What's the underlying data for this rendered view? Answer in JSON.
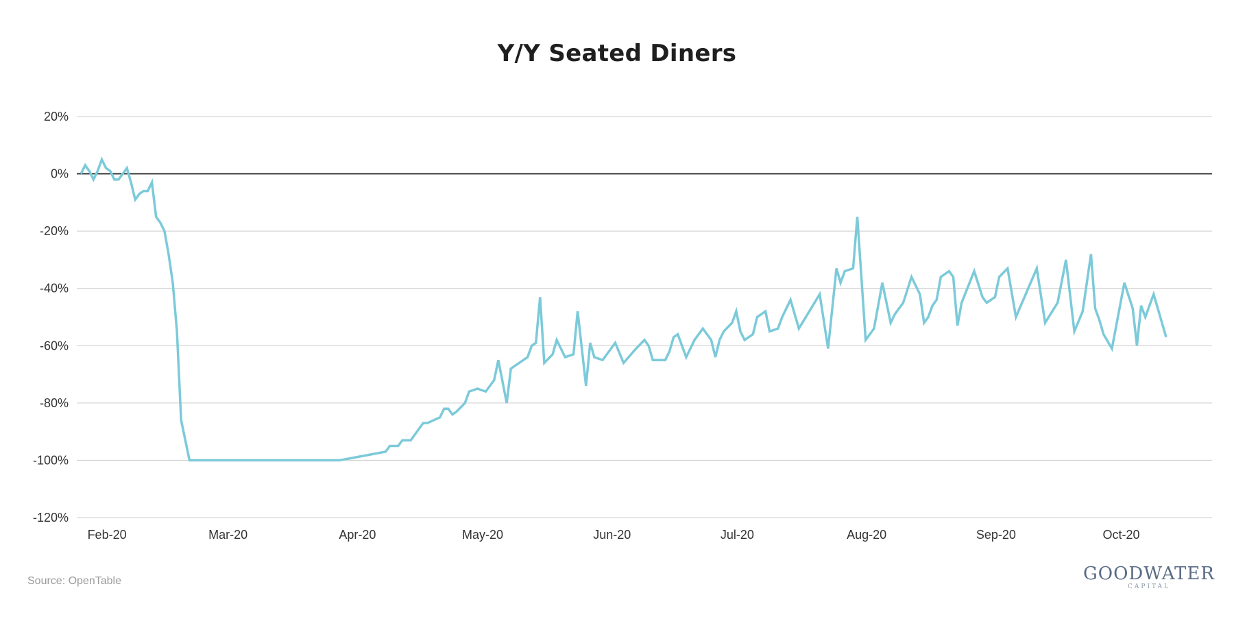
{
  "chart_data": {
    "type": "line",
    "title": "Y/Y Seated Diners",
    "source": "Source: OpenTable",
    "brand": {
      "name": "GOODWATER",
      "sub": "CAPITAL"
    },
    "xlabel": "",
    "ylabel": "",
    "ylim": [
      -120,
      20
    ],
    "yticks": [
      20,
      0,
      -20,
      -40,
      -60,
      -80,
      -100,
      -120
    ],
    "ytick_labels": [
      "20%",
      "0%",
      "-20%",
      "-40%",
      "-60%",
      "-80%",
      "-100%",
      "-120%"
    ],
    "xtick_labels": [
      "Feb-20",
      "Mar-20",
      "Apr-20",
      "May-20",
      "Jun-20",
      "Jul-20",
      "Aug-20",
      "Sep-20",
      "Oct-20"
    ],
    "xtick_dates": [
      "2020-02-01",
      "2020-03-01",
      "2020-04-01",
      "2020-05-01",
      "2020-06-01",
      "2020-07-01",
      "2020-08-01",
      "2020-09-01",
      "2020-10-01"
    ],
    "x_range": [
      "2020-01-31",
      "2020-10-29"
    ],
    "grid": true,
    "legend": "none",
    "colors": {
      "line": "#7ccad9",
      "grid": "#cccccc",
      "zero_line": "#111111"
    },
    "series": [
      {
        "values": [
          [
            "2020-02-01",
            0
          ],
          [
            "2020-02-02",
            3
          ],
          [
            "2020-02-03",
            1
          ],
          [
            "2020-02-04",
            -2
          ],
          [
            "2020-02-05",
            1
          ],
          [
            "2020-02-06",
            5
          ],
          [
            "2020-02-07",
            2
          ],
          [
            "2020-02-08",
            1
          ],
          [
            "2020-02-09",
            -2
          ],
          [
            "2020-02-10",
            -2
          ],
          [
            "2020-02-11",
            0
          ],
          [
            "2020-02-12",
            2
          ],
          [
            "2020-02-13",
            -3
          ],
          [
            "2020-02-14",
            -9
          ],
          [
            "2020-02-15",
            -7
          ],
          [
            "2020-02-16",
            -6
          ],
          [
            "2020-02-17",
            -6
          ],
          [
            "2020-02-18",
            -3
          ],
          [
            "2020-02-19",
            -15
          ],
          [
            "2020-02-20",
            -17
          ],
          [
            "2020-02-21",
            -20
          ],
          [
            "2020-02-22",
            -28
          ],
          [
            "2020-02-23",
            -38
          ],
          [
            "2020-02-24",
            -55
          ],
          [
            "2020-02-25",
            -86
          ],
          [
            "2020-02-27",
            -100
          ],
          [
            "2020-04-03",
            -100
          ],
          [
            "2020-04-14",
            -97
          ],
          [
            "2020-04-15",
            -95
          ],
          [
            "2020-04-17",
            -95
          ],
          [
            "2020-04-18",
            -93
          ],
          [
            "2020-04-20",
            -93
          ],
          [
            "2020-04-23",
            -87
          ],
          [
            "2020-04-24",
            -87
          ],
          [
            "2020-04-27",
            -85
          ],
          [
            "2020-04-28",
            -82
          ],
          [
            "2020-04-29",
            -82
          ],
          [
            "2020-04-30",
            -84
          ],
          [
            "2020-05-01",
            -83
          ],
          [
            "2020-05-03",
            -80
          ],
          [
            "2020-05-04",
            -76
          ],
          [
            "2020-05-06",
            -75
          ],
          [
            "2020-05-08",
            -76
          ],
          [
            "2020-05-10",
            -72
          ],
          [
            "2020-05-11",
            -65
          ],
          [
            "2020-05-13",
            -80
          ],
          [
            "2020-05-14",
            -68
          ],
          [
            "2020-05-18",
            -64
          ],
          [
            "2020-05-19",
            -60
          ],
          [
            "2020-05-20",
            -59
          ],
          [
            "2020-05-21",
            -43
          ],
          [
            "2020-05-22",
            -66
          ],
          [
            "2020-05-24",
            -63
          ],
          [
            "2020-05-25",
            -58
          ],
          [
            "2020-05-26",
            -61
          ],
          [
            "2020-05-27",
            -64
          ],
          [
            "2020-05-29",
            -63
          ],
          [
            "2020-05-30",
            -48
          ],
          [
            "2020-06-01",
            -74
          ],
          [
            "2020-06-02",
            -59
          ],
          [
            "2020-06-03",
            -64
          ],
          [
            "2020-06-05",
            -65
          ],
          [
            "2020-06-07",
            -61
          ],
          [
            "2020-06-08",
            -59
          ],
          [
            "2020-06-10",
            -66
          ],
          [
            "2020-06-13",
            -61
          ],
          [
            "2020-06-15",
            -58
          ],
          [
            "2020-06-16",
            -60
          ],
          [
            "2020-06-17",
            -65
          ],
          [
            "2020-06-20",
            -65
          ],
          [
            "2020-06-21",
            -62
          ],
          [
            "2020-06-22",
            -57
          ],
          [
            "2020-06-23",
            -56
          ],
          [
            "2020-06-25",
            -64
          ],
          [
            "2020-06-27",
            -58
          ],
          [
            "2020-06-28",
            -56
          ],
          [
            "2020-06-29",
            -54
          ],
          [
            "2020-07-01",
            -58
          ],
          [
            "2020-07-02",
            -64
          ],
          [
            "2020-07-03",
            -58
          ],
          [
            "2020-07-04",
            -55
          ],
          [
            "2020-07-06",
            -52
          ],
          [
            "2020-07-07",
            -48
          ],
          [
            "2020-07-08",
            -55
          ],
          [
            "2020-07-09",
            -58
          ],
          [
            "2020-07-11",
            -56
          ],
          [
            "2020-07-12",
            -50
          ],
          [
            "2020-07-14",
            -48
          ],
          [
            "2020-07-15",
            -55
          ],
          [
            "2020-07-17",
            -54
          ],
          [
            "2020-07-18",
            -50
          ],
          [
            "2020-07-20",
            -44
          ],
          [
            "2020-07-22",
            -54
          ],
          [
            "2020-07-27",
            -42
          ],
          [
            "2020-07-29",
            -61
          ],
          [
            "2020-07-31",
            -33
          ],
          [
            "2020-08-01",
            -38
          ],
          [
            "2020-08-02",
            -34
          ],
          [
            "2020-08-04",
            -33
          ],
          [
            "2020-08-05",
            -15
          ],
          [
            "2020-08-07",
            -58
          ],
          [
            "2020-08-09",
            -54
          ],
          [
            "2020-08-11",
            -38
          ],
          [
            "2020-08-13",
            -52
          ],
          [
            "2020-08-14",
            -49
          ],
          [
            "2020-08-16",
            -45
          ],
          [
            "2020-08-18",
            -36
          ],
          [
            "2020-08-20",
            -42
          ],
          [
            "2020-08-21",
            -52
          ],
          [
            "2020-08-22",
            -50
          ],
          [
            "2020-08-23",
            -46
          ],
          [
            "2020-08-24",
            -44
          ],
          [
            "2020-08-25",
            -36
          ],
          [
            "2020-08-27",
            -34
          ],
          [
            "2020-08-28",
            -36
          ],
          [
            "2020-08-29",
            -53
          ],
          [
            "2020-08-30",
            -45
          ],
          [
            "2020-09-02",
            -34
          ],
          [
            "2020-09-04",
            -43
          ],
          [
            "2020-09-05",
            -45
          ],
          [
            "2020-09-07",
            -43
          ],
          [
            "2020-09-08",
            -36
          ],
          [
            "2020-09-10",
            -33
          ],
          [
            "2020-09-12",
            -50
          ],
          [
            "2020-09-17",
            -33
          ],
          [
            "2020-09-19",
            -52
          ],
          [
            "2020-09-22",
            -45
          ],
          [
            "2020-09-24",
            -30
          ],
          [
            "2020-09-26",
            -55
          ],
          [
            "2020-09-28",
            -48
          ],
          [
            "2020-09-30",
            -28
          ],
          [
            "2020-10-01",
            -47
          ],
          [
            "2020-10-02",
            -51
          ],
          [
            "2020-10-03",
            -56
          ],
          [
            "2020-10-05",
            -61
          ],
          [
            "2020-10-08",
            -38
          ],
          [
            "2020-10-10",
            -47
          ],
          [
            "2020-10-11",
            -60
          ],
          [
            "2020-10-12",
            -46
          ],
          [
            "2020-10-13",
            -50
          ],
          [
            "2020-10-15",
            -42
          ],
          [
            "2020-10-18",
            -57
          ]
        ]
      }
    ]
  }
}
